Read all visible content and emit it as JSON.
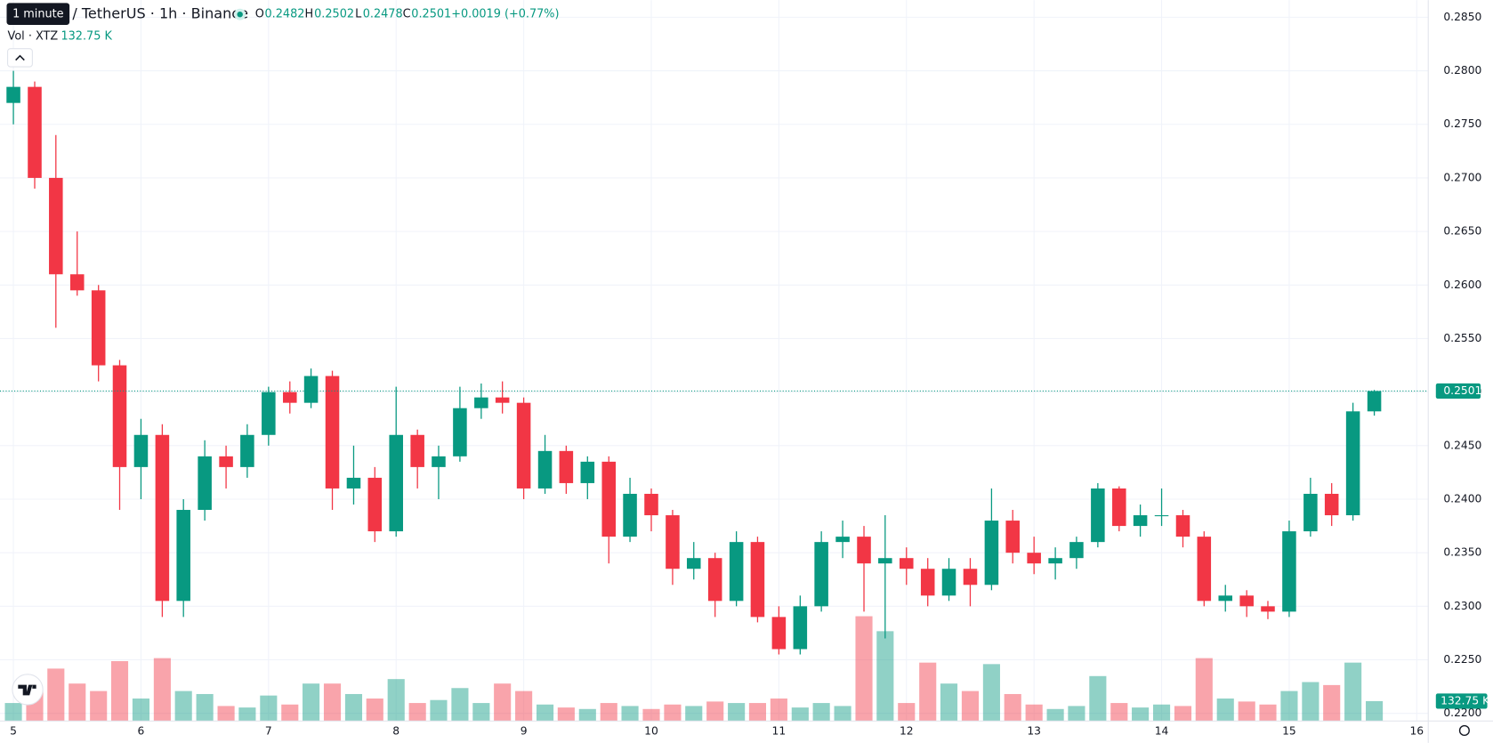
{
  "chart_data": {
    "type": "candlestick",
    "title": "/ TetherUS · 1h · Binance",
    "tooltip": "1 minute",
    "legend": {
      "labels": [
        "O",
        "H",
        "L",
        "C"
      ],
      "values": [
        0.2482,
        0.2502,
        0.2478,
        0.2501
      ],
      "change": "+0.0019 (+0.77%)"
    },
    "volume_title": "Vol · XTZ",
    "volume_readout": "132.75 K",
    "up_color": "#089981",
    "down_color": "#f23645",
    "grid": true,
    "x": [
      5,
      5.167,
      5.333,
      5.5,
      5.667,
      5.833,
      6,
      6.167,
      6.333,
      6.5,
      6.667,
      6.833,
      7,
      7.167,
      7.333,
      7.5,
      7.667,
      7.833,
      8,
      8.167,
      8.333,
      8.5,
      8.667,
      8.833,
      9,
      9.167,
      9.333,
      9.5,
      9.667,
      9.833,
      10,
      10.167,
      10.333,
      10.5,
      10.667,
      10.833,
      11,
      11.167,
      11.333,
      11.5,
      11.667,
      11.833,
      12,
      12.167,
      12.333,
      12.5,
      12.667,
      12.833,
      13,
      13.167,
      13.333,
      13.5,
      13.667,
      13.833,
      14,
      14.167,
      14.333,
      14.5,
      14.667,
      14.833,
      15,
      15.167,
      15.333,
      15.5,
      15.667
    ],
    "open": [
      0.277,
      0.2785,
      0.27,
      0.261,
      0.2595,
      0.2525,
      0.243,
      0.246,
      0.2305,
      0.239,
      0.244,
      0.243,
      0.246,
      0.25,
      0.249,
      0.2515,
      0.241,
      0.242,
      0.237,
      0.246,
      0.243,
      0.244,
      0.2485,
      0.2495,
      0.249,
      0.241,
      0.2445,
      0.2415,
      0.2435,
      0.2365,
      0.2405,
      0.2385,
      0.2335,
      0.2345,
      0.2305,
      0.236,
      0.229,
      0.226,
      0.23,
      0.236,
      0.2365,
      0.234,
      0.2345,
      0.2335,
      0.231,
      0.2335,
      0.232,
      0.238,
      0.235,
      0.234,
      0.2345,
      0.236,
      0.241,
      0.2375,
      0.2385,
      0.2385,
      0.2365,
      0.2305,
      0.231,
      0.23,
      0.2295,
      0.237,
      0.2405,
      0.2385,
      0.2482
    ],
    "high": [
      0.28,
      0.279,
      0.274,
      0.265,
      0.26,
      0.253,
      0.2475,
      0.247,
      0.24,
      0.2455,
      0.245,
      0.247,
      0.2505,
      0.251,
      0.2522,
      0.252,
      0.245,
      0.243,
      0.2505,
      0.2465,
      0.245,
      0.2505,
      0.2508,
      0.251,
      0.2495,
      0.246,
      0.245,
      0.244,
      0.244,
      0.242,
      0.241,
      0.239,
      0.236,
      0.235,
      0.237,
      0.2365,
      0.23,
      0.231,
      0.237,
      0.238,
      0.2375,
      0.2385,
      0.2355,
      0.2345,
      0.2345,
      0.2345,
      0.241,
      0.239,
      0.2365,
      0.2355,
      0.2365,
      0.2415,
      0.2412,
      0.2395,
      0.241,
      0.239,
      0.237,
      0.232,
      0.2315,
      0.2305,
      0.238,
      0.242,
      0.2415,
      0.249,
      0.2502
    ],
    "low": [
      0.275,
      0.269,
      0.256,
      0.259,
      0.251,
      0.239,
      0.24,
      0.229,
      0.229,
      0.238,
      0.241,
      0.242,
      0.245,
      0.248,
      0.2485,
      0.239,
      0.2395,
      0.236,
      0.2365,
      0.241,
      0.24,
      0.2435,
      0.2475,
      0.248,
      0.24,
      0.2405,
      0.2405,
      0.24,
      0.234,
      0.236,
      0.237,
      0.232,
      0.2325,
      0.229,
      0.23,
      0.2285,
      0.2255,
      0.2255,
      0.2295,
      0.2345,
      0.2295,
      0.227,
      0.232,
      0.23,
      0.2305,
      0.23,
      0.2315,
      0.234,
      0.233,
      0.2325,
      0.2335,
      0.2355,
      0.237,
      0.2365,
      0.2375,
      0.2355,
      0.23,
      0.2295,
      0.229,
      0.2288,
      0.229,
      0.2365,
      0.2375,
      0.238,
      0.2478
    ],
    "close": [
      0.2785,
      0.27,
      0.261,
      0.2595,
      0.2525,
      0.243,
      0.246,
      0.2305,
      0.239,
      0.244,
      0.243,
      0.246,
      0.25,
      0.249,
      0.2515,
      0.241,
      0.242,
      0.237,
      0.246,
      0.243,
      0.244,
      0.2485,
      0.2495,
      0.249,
      0.241,
      0.2445,
      0.2415,
      0.2435,
      0.2365,
      0.2405,
      0.2385,
      0.2335,
      0.2345,
      0.2305,
      0.236,
      0.229,
      0.226,
      0.23,
      0.236,
      0.2365,
      0.234,
      0.2345,
      0.2335,
      0.231,
      0.2335,
      0.232,
      0.238,
      0.235,
      0.234,
      0.2345,
      0.236,
      0.241,
      0.2375,
      0.2385,
      0.2385,
      0.2365,
      0.2305,
      0.231,
      0.23,
      0.2295,
      0.237,
      0.2405,
      0.2385,
      0.2482,
      0.2501
    ],
    "volume": [
      120,
      200,
      350,
      250,
      200,
      400,
      150,
      420,
      200,
      180,
      100,
      90,
      170,
      110,
      250,
      250,
      180,
      150,
      280,
      120,
      140,
      220,
      120,
      250,
      200,
      110,
      90,
      80,
      120,
      100,
      80,
      110,
      100,
      130,
      120,
      120,
      150,
      90,
      120,
      100,
      700,
      600,
      120,
      390,
      250,
      200,
      380,
      180,
      110,
      80,
      100,
      300,
      120,
      90,
      110,
      100,
      420,
      150,
      130,
      110,
      200,
      260,
      240,
      390,
      132.75
    ],
    "xlim": [
      4.895,
      16.09
    ],
    "ylim": [
      0.21929,
      0.2866
    ],
    "xticks": [
      5,
      6,
      7,
      8,
      9,
      10,
      11,
      12,
      13,
      14,
      15,
      16
    ],
    "yticks": [
      {
        "value": 0.22,
        "label": "0.2200"
      },
      {
        "value": 0.225,
        "label": "0.2250"
      },
      {
        "value": 0.23,
        "label": "0.2300"
      },
      {
        "value": 0.235,
        "label": "0.2350"
      },
      {
        "value": 0.24,
        "label": "0.2400"
      },
      {
        "value": 0.245,
        "label": "0.2450"
      },
      {
        "value": 0.25,
        "label": "0.2500"
      },
      {
        "value": 0.255,
        "label": "0.2550"
      },
      {
        "value": 0.26,
        "label": "0.2600"
      },
      {
        "value": 0.265,
        "label": "0.2650"
      },
      {
        "value": 0.27,
        "label": "0.2700"
      },
      {
        "value": 0.275,
        "label": "0.2750"
      },
      {
        "value": 0.28,
        "label": "0.2800"
      },
      {
        "value": 0.285,
        "label": "0.2850"
      }
    ]
  }
}
